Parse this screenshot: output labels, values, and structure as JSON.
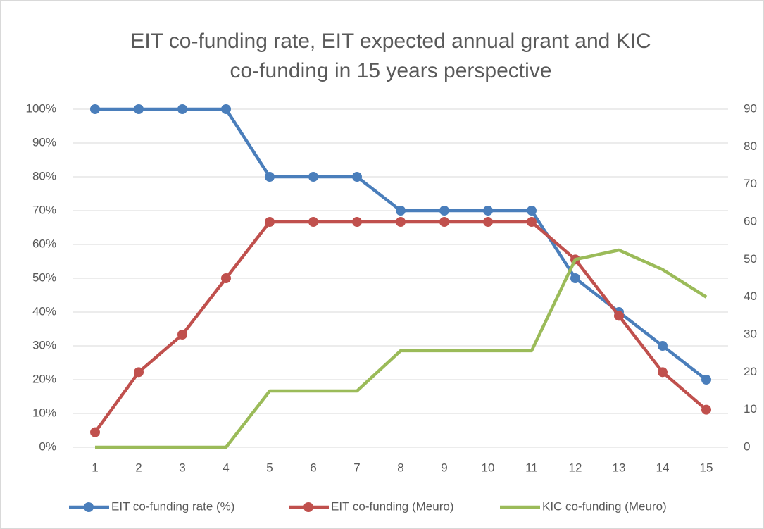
{
  "chart_data": {
    "type": "line",
    "title": [
      "EIT co-funding rate, EIT expected annual grant and KIC",
      "co-funding in 15 years perspective"
    ],
    "categories": [
      "1",
      "2",
      "3",
      "4",
      "5",
      "6",
      "7",
      "8",
      "9",
      "10",
      "11",
      "12",
      "13",
      "14",
      "15"
    ],
    "series": [
      {
        "name": "EIT co-funding rate (%)",
        "color": "#4a7ebb",
        "marker": true,
        "axis": "y",
        "values": [
          100,
          100,
          100,
          100,
          80,
          80,
          80,
          70,
          70,
          70,
          70,
          50,
          40,
          30,
          20
        ]
      },
      {
        "name": "EIT co-funding (Meuro)",
        "color": "#c0504d",
        "marker": true,
        "axis": "y2",
        "values": [
          4,
          20,
          30,
          45,
          60,
          60,
          60,
          60,
          60,
          60,
          60,
          50,
          35,
          20,
          10
        ]
      },
      {
        "name": "KIC co-funding (Meuro)",
        "color": "#9bbb59",
        "marker": false,
        "axis": "y2",
        "values": [
          0,
          0,
          0,
          0,
          15,
          15,
          15,
          25.7,
          25.7,
          25.7,
          25.7,
          50,
          52.5,
          47.3,
          40
        ]
      }
    ],
    "ylim": [
      0,
      100
    ],
    "yticks": [
      {
        "value": 0,
        "label": "0%"
      },
      {
        "value": 10,
        "label": "10%"
      },
      {
        "value": 20,
        "label": "20%"
      },
      {
        "value": 30,
        "label": "30%"
      },
      {
        "value": 40,
        "label": "40%"
      },
      {
        "value": 50,
        "label": "50%"
      },
      {
        "value": 60,
        "label": "60%"
      },
      {
        "value": 70,
        "label": "70%"
      },
      {
        "value": 80,
        "label": "80%"
      },
      {
        "value": 90,
        "label": "90%"
      },
      {
        "value": 100,
        "label": "100%"
      }
    ],
    "y2lim": [
      0,
      90
    ],
    "y2ticks": [
      0,
      10,
      20,
      30,
      40,
      50,
      60,
      70,
      80,
      90
    ],
    "grid": true,
    "legend": "bottom"
  }
}
